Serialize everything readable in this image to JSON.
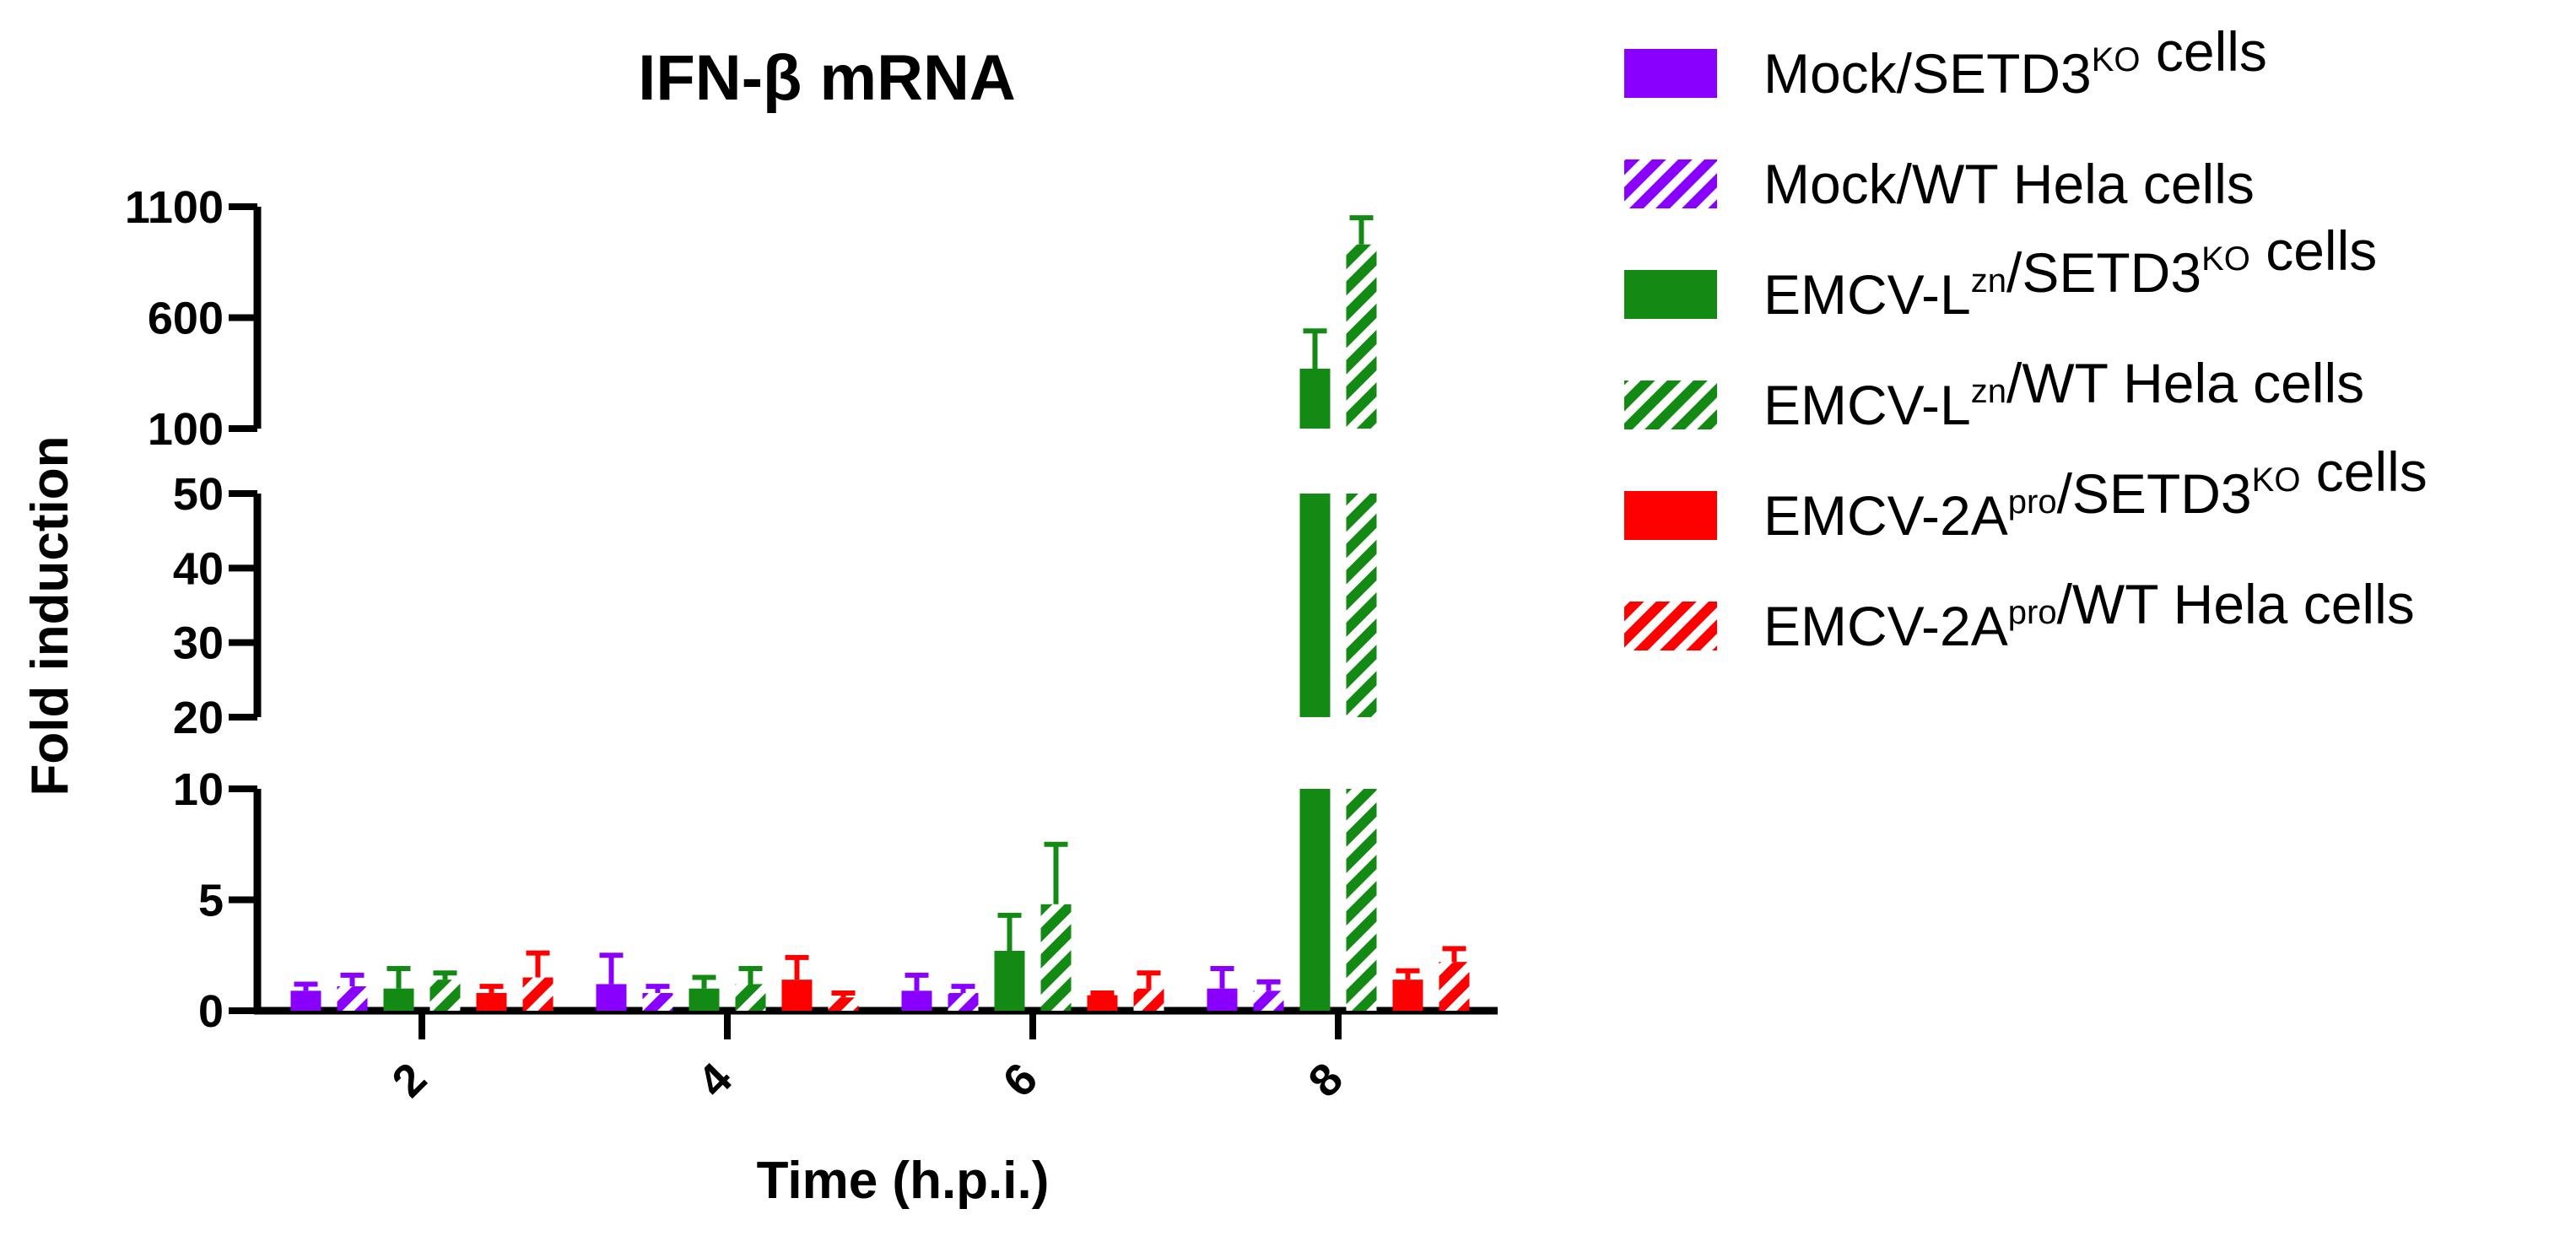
{
  "chart_data": {
    "type": "bar",
    "title": "IFN-β mRNA",
    "xlabel": "Time (h.p.i.)",
    "ylabel": "Fold induction",
    "categories": [
      "2",
      "4",
      "6",
      "8"
    ],
    "y_axis_segments": [
      {
        "range": [
          0,
          10
        ],
        "ticks": [
          "0",
          "5",
          "10"
        ]
      },
      {
        "range": [
          20,
          50
        ],
        "ticks": [
          "20",
          "30",
          "40",
          "50"
        ]
      },
      {
        "range": [
          100,
          1100
        ],
        "ticks": [
          "100",
          "600",
          "1100"
        ]
      }
    ],
    "series": [
      {
        "name": "Mock/SETD3KO cells",
        "name_parts": [
          {
            "t": "Mock/SETD3"
          },
          {
            "t": "KO",
            "sup": true
          },
          {
            "t": " cells"
          }
        ],
        "color": "#8A00FF",
        "pattern": "solid",
        "values": [
          0.9,
          1.2,
          0.9,
          1.0
        ],
        "errors": [
          0.3,
          1.3,
          0.7,
          0.9
        ]
      },
      {
        "name": "Mock/WT Hela cells",
        "name_parts": [
          {
            "t": "Mock/WT Hela cells"
          }
        ],
        "color": "#8A00FF",
        "pattern": "hatch",
        "values": [
          1.1,
          0.8,
          0.8,
          0.9
        ],
        "errors": [
          0.5,
          0.3,
          0.3,
          0.4
        ]
      },
      {
        "name": "EMCV-Lzn/SETD3KO cells",
        "name_parts": [
          {
            "t": "EMCV-L"
          },
          {
            "t": "zn",
            "sup": true
          },
          {
            "t": "/SETD3"
          },
          {
            "t": "KO",
            "sup": true
          },
          {
            "t": " cells"
          }
        ],
        "color": "#138A13",
        "pattern": "solid",
        "values": [
          1.0,
          1.0,
          2.7,
          370
        ],
        "errors": [
          0.9,
          0.5,
          1.6,
          170
        ]
      },
      {
        "name": "EMCV-Lzn/WT Hela cells",
        "name_parts": [
          {
            "t": "EMCV-L"
          },
          {
            "t": "zn",
            "sup": true
          },
          {
            "t": "/WT Hela cells"
          }
        ],
        "color": "#138A13",
        "pattern": "hatch",
        "values": [
          1.4,
          1.2,
          4.8,
          930
        ],
        "errors": [
          0.3,
          0.7,
          2.7,
          120
        ]
      },
      {
        "name": "EMCV-2Apro/SETD3KO cells",
        "name_parts": [
          {
            "t": "EMCV-2A"
          },
          {
            "t": "pro",
            "sup": true
          },
          {
            "t": "/SETD3"
          },
          {
            "t": "KO",
            "sup": true
          },
          {
            "t": " cells"
          }
        ],
        "color": "#FF0000",
        "pattern": "solid",
        "values": [
          0.8,
          1.4,
          0.7,
          1.4
        ],
        "errors": [
          0.3,
          1.0,
          0.1,
          0.4
        ]
      },
      {
        "name": "EMCV-2Apro/WT Hela cells",
        "name_parts": [
          {
            "t": "EMCV-2A"
          },
          {
            "t": "pro",
            "sup": true
          },
          {
            "t": "/WT Hela cells"
          }
        ],
        "color": "#FF0000",
        "pattern": "hatch",
        "values": [
          1.5,
          0.6,
          1.0,
          2.2
        ],
        "errors": [
          1.1,
          0.2,
          0.7,
          0.6
        ]
      }
    ],
    "legend_position": "right",
    "grid": false
  }
}
